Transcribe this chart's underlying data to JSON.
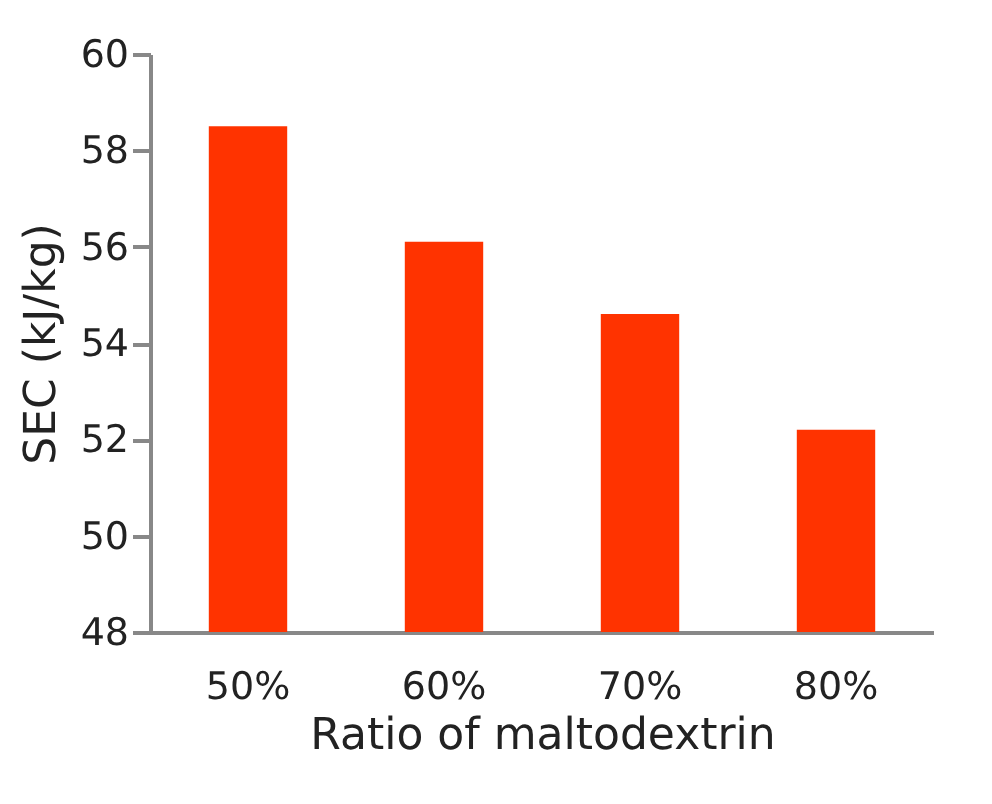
{
  "chart_data": {
    "type": "bar",
    "xlabel": "Ratio of maltodextrin",
    "ylabel": "SEC (kJ/kg)",
    "categories": [
      "50%",
      "60%",
      "70%",
      "80%"
    ],
    "values": [
      58.5,
      56.1,
      54.6,
      52.2
    ],
    "color": "#ff3300",
    "ylim": [
      48,
      60
    ],
    "yticks": [
      48,
      50,
      52,
      54,
      56,
      58,
      60
    ],
    "grid": false
  }
}
